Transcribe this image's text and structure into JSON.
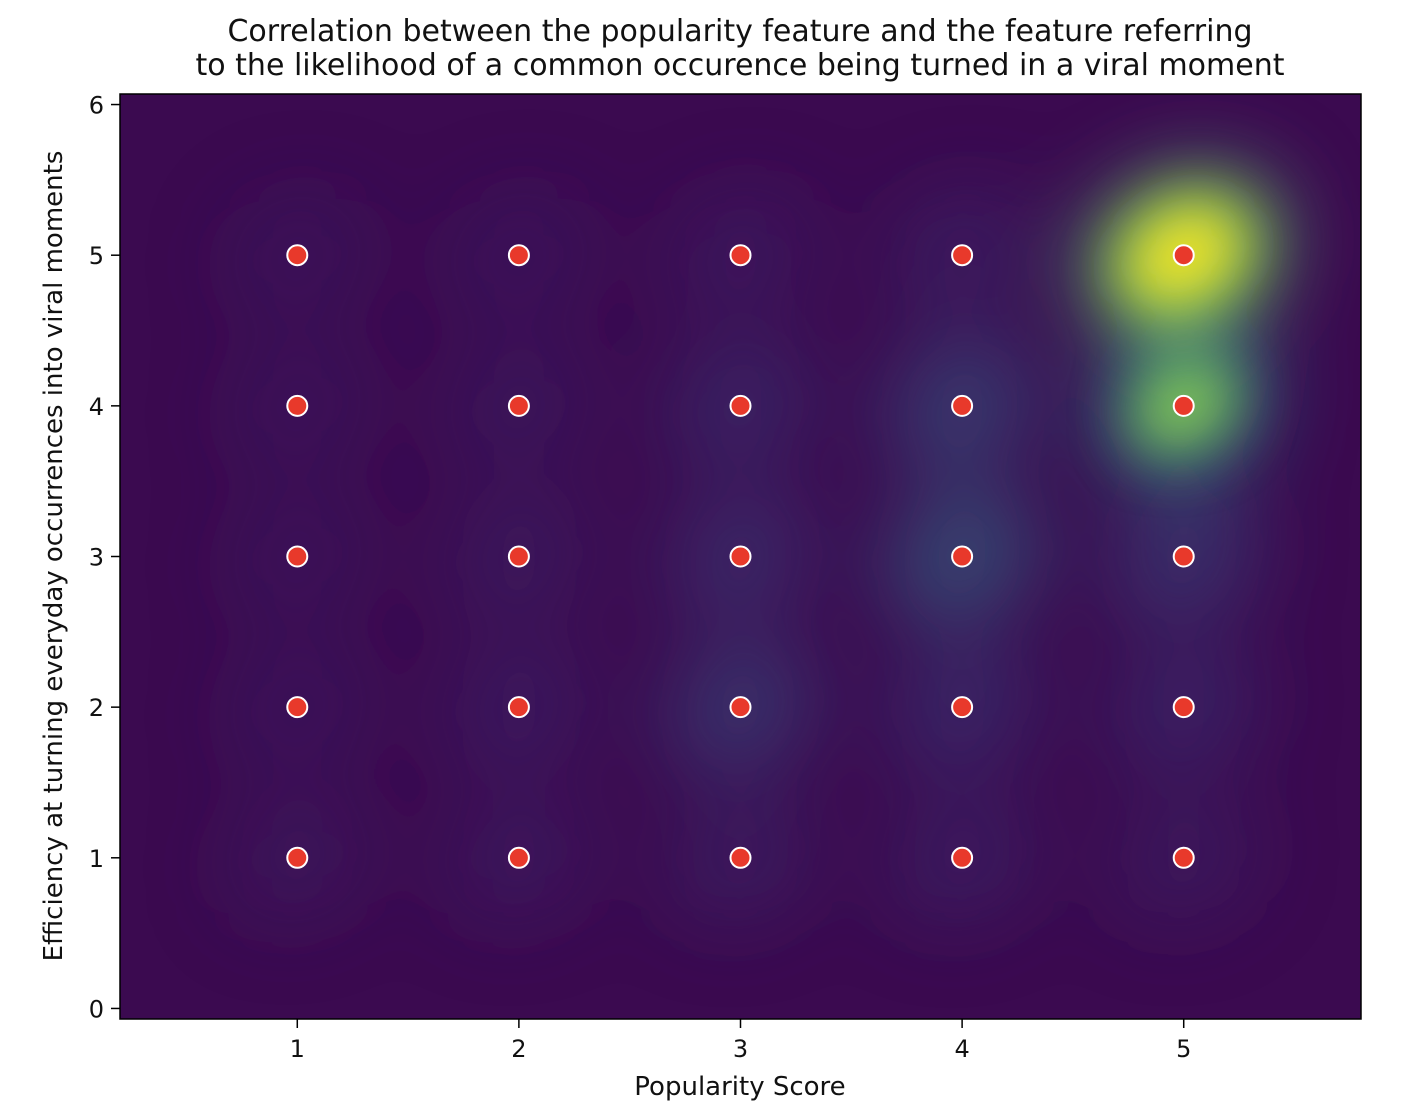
{
  "chart_data": {
    "type": "scatter",
    "overlay": "kde-density-heatmap",
    "colormap": "viridis",
    "title_lines": [
      "Correlation between the popularity feature and the feature referring",
      "to the likelihood of a common occurence being turned in a viral moment"
    ],
    "xlabel": "Popularity Score",
    "ylabel": "Efficiency at turning everyday occurrences into viral moments",
    "xlim": [
      0.2,
      5.8
    ],
    "ylim": [
      -0.07,
      6.07
    ],
    "xticks": [
      "1",
      "2",
      "3",
      "4",
      "5"
    ],
    "yticks": [
      "0",
      "1",
      "2",
      "3",
      "4",
      "5",
      "6"
    ],
    "grid": false,
    "marker_color": "#e8392b",
    "marker_edge": "#ffffff",
    "points": [
      {
        "x": 1,
        "y": 1,
        "density": 0.04
      },
      {
        "x": 1,
        "y": 2,
        "density": 0.02
      },
      {
        "x": 1,
        "y": 3,
        "density": 0.01
      },
      {
        "x": 1,
        "y": 4,
        "density": 0.01
      },
      {
        "x": 1,
        "y": 5,
        "density": 0.01
      },
      {
        "x": 2,
        "y": 1,
        "density": 0.06
      },
      {
        "x": 2,
        "y": 2,
        "density": 0.08
      },
      {
        "x": 2,
        "y": 3,
        "density": 0.07
      },
      {
        "x": 2,
        "y": 4,
        "density": 0.03
      },
      {
        "x": 2,
        "y": 5,
        "density": 0.02
      },
      {
        "x": 3,
        "y": 1,
        "density": 0.09
      },
      {
        "x": 3,
        "y": 2,
        "density": 0.28
      },
      {
        "x": 3,
        "y": 3,
        "density": 0.2
      },
      {
        "x": 3,
        "y": 4,
        "density": 0.16
      },
      {
        "x": 3,
        "y": 5,
        "density": 0.06
      },
      {
        "x": 4,
        "y": 1,
        "density": 0.1
      },
      {
        "x": 4,
        "y": 2,
        "density": 0.18
      },
      {
        "x": 4,
        "y": 3,
        "density": 0.4
      },
      {
        "x": 4,
        "y": 4,
        "density": 0.33
      },
      {
        "x": 4,
        "y": 5,
        "density": 0.1
      },
      {
        "x": 5,
        "y": 1,
        "density": 0.07
      },
      {
        "x": 5,
        "y": 2,
        "density": 0.15
      },
      {
        "x": 5,
        "y": 3,
        "density": 0.26
      },
      {
        "x": 5,
        "y": 4,
        "density": 0.6
      },
      {
        "x": 5,
        "y": 5,
        "density": 1.0
      }
    ]
  }
}
